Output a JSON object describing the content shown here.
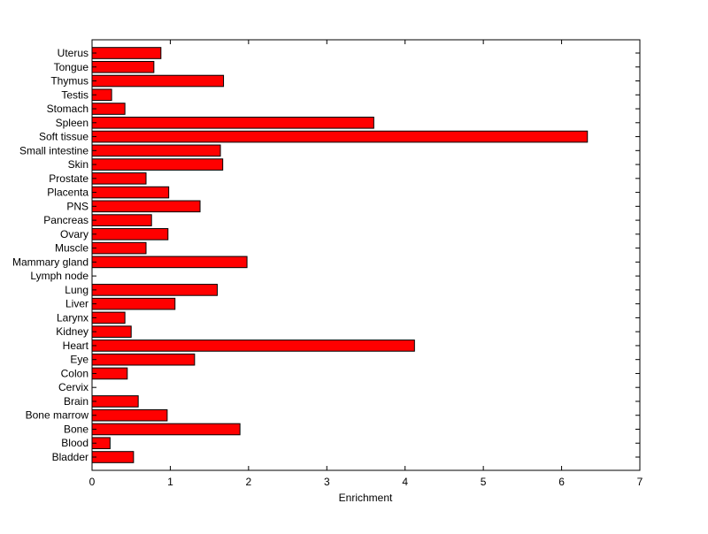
{
  "chart_data": {
    "type": "bar",
    "orientation": "horizontal",
    "categories": [
      "Uterus",
      "Tongue",
      "Thymus",
      "Testis",
      "Stomach",
      "Spleen",
      "Soft tissue",
      "Small intestine",
      "Skin",
      "Prostate",
      "Placenta",
      "PNS",
      "Pancreas",
      "Ovary",
      "Muscle",
      "Mammary gland",
      "Lymph node",
      "Lung",
      "Liver",
      "Larynx",
      "Kidney",
      "Heart",
      "Eye",
      "Colon",
      "Cervix",
      "Brain",
      "Bone marrow",
      "Bone",
      "Blood",
      "Bladder"
    ],
    "values": [
      0.88,
      0.79,
      1.68,
      0.25,
      0.42,
      3.6,
      6.33,
      1.64,
      1.67,
      0.69,
      0.98,
      1.38,
      0.76,
      0.97,
      0.69,
      1.98,
      0,
      1.6,
      1.06,
      0.42,
      0.5,
      4.12,
      1.31,
      0.45,
      0,
      0.59,
      0.96,
      1.89,
      0.23,
      0.53
    ],
    "title": "",
    "xlabel": "Enrichment",
    "ylabel": "",
    "xlim": [
      0,
      7
    ],
    "xticks": [
      "0",
      "1",
      "2",
      "3",
      "4",
      "5",
      "6",
      "7"
    ],
    "grid": false,
    "legend": "none",
    "bar_color": "#ff0000",
    "edge_color": "#000000"
  }
}
